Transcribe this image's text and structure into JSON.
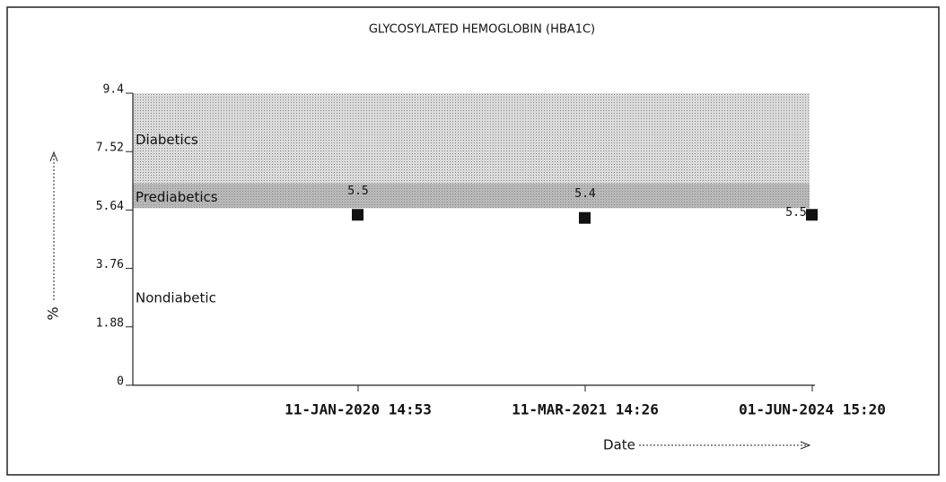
{
  "chart_data": {
    "type": "scatter",
    "title": "GLYCOSYLATED HEMOGLOBIN (HBA1C)",
    "x_label": "Date",
    "y_label": "%",
    "categories": [
      "11-JAN-2020 14:53",
      "11-MAR-2021 14:26",
      "01-JUN-2024 15:20"
    ],
    "values": [
      5.5,
      5.4,
      5.5
    ],
    "color": "#111111",
    "ylim": [
      0,
      9.4
    ],
    "yticks": [
      0,
      1.88,
      3.76,
      5.64,
      7.52,
      9.4
    ],
    "bands": [
      {
        "label": "Nondiabetic",
        "from": 0,
        "to": 5.7,
        "color": "#ffffff"
      },
      {
        "label": "Prediabetics",
        "from": 5.7,
        "to": 6.5,
        "color": "#b8b8b8"
      },
      {
        "label": "Diabetics",
        "from": 6.5,
        "to": 9.4,
        "color": "#dcdcdc"
      }
    ]
  }
}
